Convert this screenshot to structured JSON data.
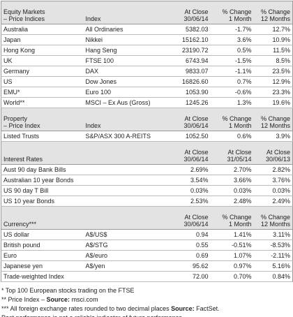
{
  "sections": [
    {
      "columns": [
        "Equity Markets\n– Price Indices",
        "Index",
        "At Close\n30/06/14",
        "% Change\n1 Month",
        "% Change\n12 Months"
      ],
      "rows": [
        [
          "Australia",
          "All Ordinaries",
          "5382.03",
          "-1.7%",
          "12.7%"
        ],
        [
          "Japan",
          "Nikkei",
          "15162.10",
          "3.6%",
          "10.9%"
        ],
        [
          "Hong Kong",
          "Hang Seng",
          "23190.72",
          "0.5%",
          "11.5%"
        ],
        [
          "UK",
          "FTSE 100",
          "6743.94",
          "-1.5%",
          "8.5%"
        ],
        [
          "Germany",
          "DAX",
          "9833.07",
          "-1.1%",
          "23.5%"
        ],
        [
          "US",
          "Dow Jones",
          "16826.60",
          "0.7%",
          "12.9%"
        ],
        [
          "EMU*",
          "Euro 100",
          "1053.90",
          "-0.6%",
          "23.3%"
        ],
        [
          "World**",
          "MSCI – Ex Aus (Gross)",
          "1245.26",
          "1.3%",
          "19.6%"
        ]
      ]
    },
    {
      "columns": [
        "Property\n– Price Index",
        "Index",
        "At Close\n30/06/14",
        "% Change\n1 Month",
        "% Change\n12 Months"
      ],
      "rows": [
        [
          "Listed Trusts",
          "S&P/ASX 300 A-REITS",
          "1052.50",
          "0.6%",
          "3.9%"
        ]
      ]
    },
    {
      "columns": [
        "Interest Rates",
        null,
        "At Close\n30/06/14",
        "At Close\n31/05/14",
        "At Close\n30/06/13"
      ],
      "rows": [
        [
          "Aust 90 day Bank Bills",
          null,
          "2.69%",
          "2.70%",
          "2.82%"
        ],
        [
          "Australian 10 year Bonds",
          null,
          "3.54%",
          "3.66%",
          "3.76%"
        ],
        [
          "US 90 day T Bill",
          null,
          "0.03%",
          "0.03%",
          "0.03%"
        ],
        [
          "US 10 year Bonds",
          null,
          "2.53%",
          "2.48%",
          "2.49%"
        ]
      ]
    },
    {
      "columns": [
        "Currency***",
        null,
        "At Close\n30/06/14",
        "% Change\n1 Month",
        "% Change\n12 Months"
      ],
      "rows": [
        [
          "US dollar",
          "A$/US$",
          "0.94",
          "1.41%",
          "3.11%"
        ],
        [
          "British pound",
          "A$/STG",
          "0.55",
          "-0.51%",
          "-8.53%"
        ],
        [
          "Euro",
          "A$/euro",
          "0.69",
          "1.07%",
          "-2.11%"
        ],
        [
          "Japanese yen",
          "A$/yen",
          "95.62",
          "0.97%",
          "5.16%"
        ],
        [
          "Trade-weighted Index",
          null,
          "72.00",
          "0.70%",
          "0.84%"
        ]
      ]
    }
  ],
  "footnotes": [
    [
      {
        "text": "* Top 100 European stocks trading on the FTSE"
      }
    ],
    [
      {
        "text": "** Price Index – "
      },
      {
        "text": "Source:",
        "bold": true
      },
      {
        "text": " msci.com"
      }
    ],
    [
      {
        "text": "*** All foreign exchange rates rounded to two decimal places "
      },
      {
        "text": "Source:",
        "bold": true
      },
      {
        "text": " FactSet."
      }
    ],
    [
      {
        "text": "Past performance is not a reliable indicator of future performance."
      }
    ]
  ]
}
